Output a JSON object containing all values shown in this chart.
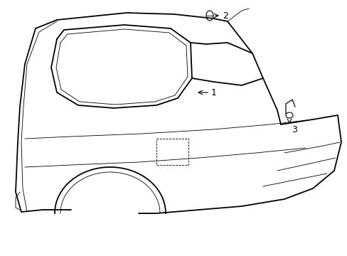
{
  "background_color": "#ffffff",
  "line_color": "#000000",
  "figsize": [
    4.89,
    3.6
  ],
  "dpi": 100,
  "lw_main": 1.0,
  "lw_thin": 0.6,
  "lw_thick": 1.3
}
